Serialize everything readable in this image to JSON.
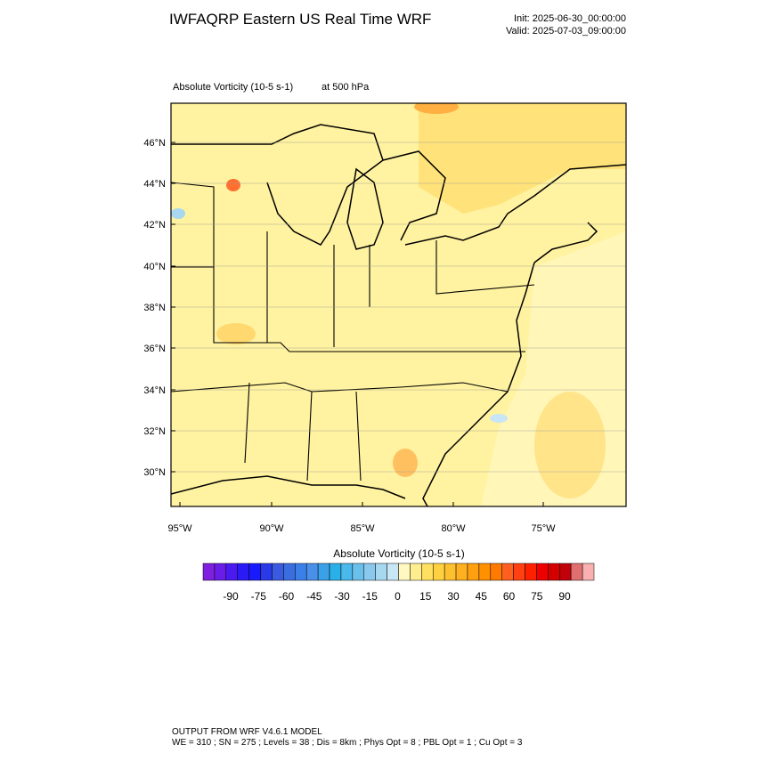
{
  "header": {
    "title": "IWFAQRP Eastern US Real Time WRF",
    "init": "Init: 2025-06-30_00:00:00",
    "valid": "Valid: 2025-07-03_09:00:00"
  },
  "map": {
    "field_label": "Absolute Vorticity   (10-5 s-1)",
    "level_label": "at   500 hPa",
    "lat_labels": [
      "46°N",
      "44°N",
      "42°N",
      "40°N",
      "38°N",
      "36°N",
      "34°N",
      "32°N",
      "30°N"
    ],
    "lon_labels": [
      "95°W",
      "90°W",
      "85°W",
      "80°W",
      "75°W"
    ]
  },
  "colorbar": {
    "title": "Absolute Vorticity  (10-5 s-1)",
    "ticks": [
      -90,
      -75,
      -60,
      -45,
      -30,
      -15,
      0,
      15,
      30,
      45,
      60,
      75,
      90
    ],
    "colors": [
      "#7f1fe0",
      "#6a1de8",
      "#4a1af0",
      "#2a1af5",
      "#1a1aff",
      "#2a3ae8",
      "#3a5ae0",
      "#3a6ee0",
      "#3a80e8",
      "#4a90e8",
      "#3aa0e8",
      "#2ab0e8",
      "#4ab8ea",
      "#6ac0ea",
      "#8ac8ec",
      "#a8d8f0",
      "#c8e6f6",
      "#fff8c0",
      "#ffee90",
      "#ffe060",
      "#ffd040",
      "#ffc030",
      "#ffb020",
      "#ffa010",
      "#ff9000",
      "#ff7a00",
      "#ff6020",
      "#ff4010",
      "#ff2000",
      "#ee0000",
      "#d40000",
      "#c0000a",
      "#e07070",
      "#f8b0b0"
    ]
  },
  "footer": {
    "line1": "OUTPUT FROM WRF V4.6.1 MODEL",
    "line2": "WE = 310 ; SN = 275 ; Levels = 38 ; Dis = 8km ; Phys Opt = 8 ; PBL Opt = 1 ; Cu Opt = 3"
  }
}
